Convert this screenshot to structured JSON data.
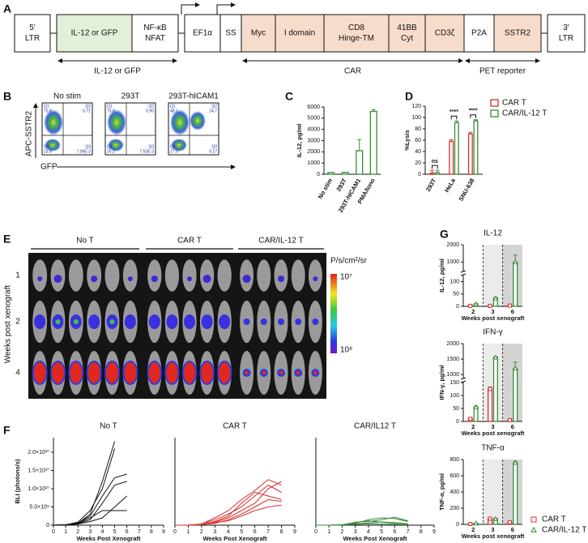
{
  "panel_labels": [
    "A",
    "B",
    "C",
    "D",
    "E",
    "F",
    "G"
  ],
  "construct": {
    "segments": [
      [
        "5'",
        "LTR"
      ],
      [
        "IL-12 or GFP"
      ],
      [
        "NF-κB",
        "NFAT"
      ],
      [
        "EF1α"
      ],
      [
        "SS"
      ],
      [
        "Myc"
      ],
      [
        "I domain"
      ],
      [
        "CD8",
        "Hinge-TM"
      ],
      [
        "41BB",
        "Cyt"
      ],
      [
        "CD3ζ"
      ],
      [
        "P2A"
      ],
      [
        "SSTR2"
      ],
      [
        "3'",
        "LTR"
      ]
    ],
    "brackets": [
      "IL-12 or GFP",
      "CAR",
      "PET reporter"
    ]
  },
  "flow": {
    "y_label": "APC-SSTR2",
    "x_label": "GFP",
    "plots": [
      {
        "title": "No stim",
        "quadrants": [
          {
            "name": "Q1",
            "value": "75.8"
          },
          {
            "name": "Q2",
            "value": "0.71"
          },
          {
            "name": "Q3",
            "value": "7.09E-3"
          },
          {
            "name": "Q4",
            "value": "23.4"
          }
        ]
      },
      {
        "title": "293T",
        "quadrants": [
          {
            "name": "Q1",
            "value": "73.8"
          },
          {
            "name": "Q2",
            "value": "0.95"
          },
          {
            "name": "Q3",
            "value": "7.53E-3"
          },
          {
            "name": "Q4",
            "value": "25.2"
          }
        ]
      },
      {
        "title": "293T-hICAM1",
        "quadrants": [
          {
            "name": "Q1",
            "value": "48.1"
          },
          {
            "name": "Q2",
            "value": "24.7"
          },
          {
            "name": "Q3",
            "value": "0.17"
          },
          {
            "name": "Q4",
            "value": "27.0"
          }
        ]
      }
    ]
  },
  "imaging": {
    "groups": [
      "No T",
      "CAR T",
      "CAR/IL-12 T"
    ],
    "rows": [
      "1",
      "2",
      "4"
    ],
    "y_label": "Weeks post xenograft",
    "scale_unit": "P/s/cm²/sr",
    "scale_max": "10⁷",
    "scale_min": "10⁶"
  },
  "chart_data": [
    {
      "type": "bar",
      "categories": [
        "No stim",
        "293T",
        "293T-hICAM1",
        "PMA/Iono"
      ],
      "values": [
        150,
        160,
        2100,
        5600
      ],
      "errors": [
        0,
        0,
        1000,
        150
      ],
      "color": "#3a8a3a",
      "y_label": "IL-12, pg/ml",
      "ylim": [
        0,
        6000
      ],
      "yticks": [
        0,
        1000,
        2000,
        3000,
        4000,
        5000,
        6000
      ]
    },
    {
      "type": "bar",
      "categories": [
        "293T",
        "HeLa",
        "SNU-638"
      ],
      "series": [
        {
          "name": "CAR T",
          "color": "#d6302b",
          "values": [
            2,
            58,
            71
          ],
          "errors": [
            5,
            3,
            3
          ]
        },
        {
          "name": "CAR/IL-12 T",
          "color": "#3a8a3a",
          "values": [
            3,
            91,
            94
          ],
          "errors": [
            4,
            3,
            2
          ]
        }
      ],
      "y_label": "%Lysis",
      "ylim": [
        0,
        120
      ],
      "yticks": [
        0,
        20,
        40,
        60,
        80,
        100,
        120
      ],
      "annotations": [
        "ns",
        "****",
        "****"
      ],
      "legend": "upper right"
    },
    {
      "type": "line",
      "title": "No T",
      "x": [
        0,
        1,
        2,
        3,
        4,
        5,
        6,
        7,
        8
      ],
      "xlim": [
        0,
        9
      ],
      "xticks": [
        0,
        1,
        2,
        3,
        4,
        5,
        6,
        7,
        8,
        9
      ],
      "ylim": [
        0,
        24000000000
      ],
      "yticks": [
        0,
        {
          "value": 5000000000,
          "label": "5.0×10⁹"
        },
        {
          "value": 10000000000,
          "label": "1.0×10¹⁰"
        },
        {
          "value": 15000000000,
          "label": "1.5×10¹⁰"
        },
        {
          "value": 20000000000,
          "label": "2.0×10¹⁰"
        }
      ],
      "y_label": "BLI (photons/s)",
      "x_label": "Weeks Post Xenograft",
      "series": [
        {
          "color": "#111111",
          "values": [
            0,
            100000000,
            500000000,
            3000000000,
            12000000000,
            23000000000,
            null,
            null,
            null
          ]
        },
        {
          "color": "#111111",
          "values": [
            0,
            100000000,
            800000000,
            4000000000,
            10000000000,
            21000000000,
            null,
            null,
            null
          ]
        },
        {
          "color": "#111111",
          "values": [
            0,
            50000000,
            600000000,
            2500000000,
            8000000000,
            13000000000,
            14000000000,
            null,
            null
          ]
        },
        {
          "color": "#111111",
          "values": [
            0,
            100000000,
            400000000,
            1500000000,
            6000000000,
            11000000000,
            12000000000,
            null,
            null
          ]
        },
        {
          "color": "#111111",
          "values": [
            0,
            100000000,
            500000000,
            2000000000,
            4000000000,
            4000000000,
            4000000000,
            null,
            null
          ]
        },
        {
          "color": "#111111",
          "values": [
            0,
            50000000,
            300000000,
            1000000000,
            2000000000,
            5000000000,
            8000000000,
            null,
            null
          ]
        }
      ]
    },
    {
      "type": "line",
      "title": "CAR T",
      "x": [
        0,
        1,
        2,
        3,
        4,
        5,
        6,
        7,
        8
      ],
      "xlim": [
        0,
        9
      ],
      "xticks": [
        0,
        1,
        2,
        3,
        4,
        5,
        6,
        7,
        8,
        9
      ],
      "ylim": [
        0,
        24000000000
      ],
      "x_label": "Weeks Post Xenograft",
      "series": [
        {
          "color": "#d6302b",
          "values": [
            0,
            0,
            200000000,
            800000000,
            2000000000,
            4000000000,
            6000000000,
            10000000000,
            12000000000
          ]
        },
        {
          "color": "#d6302b",
          "values": [
            0,
            0,
            300000000,
            1500000000,
            3000000000,
            5000000000,
            8000000000,
            11000000000,
            9000000000
          ]
        },
        {
          "color": "#d6302b",
          "values": [
            0,
            0,
            100000000,
            1000000000,
            2500000000,
            6000000000,
            9000000000,
            8000000000,
            7000000000
          ]
        },
        {
          "color": "#d6302b",
          "values": [
            0,
            0,
            200000000,
            500000000,
            1500000000,
            3000000000,
            5000000000,
            7000000000,
            6500000000
          ]
        },
        {
          "color": "#d6302b",
          "values": [
            0,
            0,
            100000000,
            700000000,
            1200000000,
            2500000000,
            4000000000,
            5000000000,
            5500000000
          ]
        },
        {
          "color": "#d6302b",
          "values": [
            0,
            0,
            300000000,
            2000000000,
            4000000000,
            7000000000,
            9500000000,
            12500000000,
            11000000000
          ]
        }
      ]
    },
    {
      "type": "line",
      "title": "CAR/IL12 T",
      "x": [
        0,
        1,
        2,
        3,
        4,
        5,
        6,
        7,
        8
      ],
      "xlim": [
        0,
        9
      ],
      "xticks": [
        0,
        1,
        2,
        3,
        4,
        5,
        6,
        7,
        8,
        9
      ],
      "ylim": [
        0,
        24000000000
      ],
      "x_label": "Weeks Post Xenograft",
      "series": [
        {
          "color": "#3a8a3a",
          "values": [
            0,
            0,
            100000000,
            500000000,
            1500000000,
            2000000000,
            1800000000,
            1000000000,
            null
          ]
        },
        {
          "color": "#3a8a3a",
          "values": [
            0,
            0,
            100000000,
            800000000,
            1000000000,
            1500000000,
            2200000000,
            1200000000,
            null
          ]
        },
        {
          "color": "#3a8a3a",
          "values": [
            0,
            0,
            50000000,
            300000000,
            600000000,
            900000000,
            700000000,
            400000000,
            null
          ]
        },
        {
          "color": "#3a8a3a",
          "values": [
            0,
            0,
            100000000,
            200000000,
            400000000,
            300000000,
            200000000,
            100000000,
            null
          ]
        },
        {
          "color": "#3a8a3a",
          "values": [
            0,
            0,
            50000000,
            600000000,
            1200000000,
            800000000,
            500000000,
            300000000,
            null
          ]
        }
      ]
    },
    {
      "type": "bar",
      "title": "IL-12",
      "categories": [
        "2",
        "3",
        "6"
      ],
      "x_label": "Weeks post xenograft",
      "y_label": "IL-12, pg/ml",
      "ylim": [
        0,
        2000
      ],
      "yticks": [
        0,
        50,
        100,
        1000,
        2000
      ],
      "axis_break": [
        125,
        500
      ],
      "category_shading": [
        "#ffffff",
        "#ebebeb",
        "#d4d4d4"
      ],
      "series": [
        {
          "color": "#d6302b",
          "marker": "square",
          "values": [
            2,
            2,
            3
          ],
          "errors": [
            1,
            1,
            1
          ]
        },
        {
          "color": "#3a8a3a",
          "marker": "triangle",
          "values": [
            9,
            33,
            1000
          ],
          "errors": [
            3,
            3,
            400
          ]
        }
      ]
    },
    {
      "type": "bar",
      "title": "IFN-γ",
      "categories": [
        "2",
        "3",
        "6"
      ],
      "x_label": "Weeks post xenograft",
      "y_label": "IFN-γ, pg/ml",
      "ylim": [
        0,
        2000
      ],
      "yticks": [
        0,
        50,
        100,
        150,
        1000,
        1500,
        2000
      ],
      "axis_break": [
        150,
        900
      ],
      "category_shading": [
        "#ffffff",
        "#ebebeb",
        "#d4d4d4"
      ],
      "series": [
        {
          "color": "#d6302b",
          "marker": "square",
          "values": [
            10,
            125,
            5
          ],
          "errors": [
            5,
            8,
            3
          ]
        },
        {
          "color": "#3a8a3a",
          "marker": "triangle",
          "values": [
            55,
            1550,
            1200
          ],
          "errors": [
            5,
            30,
            200
          ]
        }
      ]
    },
    {
      "type": "bar",
      "title": "TNF-α",
      "categories": [
        "2",
        "3",
        "6"
      ],
      "x_label": "Weeks post xenograft",
      "y_label": "TNF-α, pg/ml",
      "ylim": [
        0,
        800
      ],
      "yticks": [
        0,
        200,
        400,
        600,
        800
      ],
      "category_shading": [
        "#ffffff",
        "#ebebeb",
        "#d4d4d4"
      ],
      "legend": "lower right",
      "series": [
        {
          "name": "CAR T",
          "color": "#d6302b",
          "marker": "square",
          "values": [
            5,
            70,
            25
          ],
          "errors": [
            2,
            8,
            10
          ]
        },
        {
          "name": "CAR/IL-12 T",
          "color": "#3a8a3a",
          "marker": "triangle",
          "values": [
            12,
            68,
            760
          ],
          "errors": [
            3,
            6,
            20
          ]
        }
      ]
    }
  ]
}
